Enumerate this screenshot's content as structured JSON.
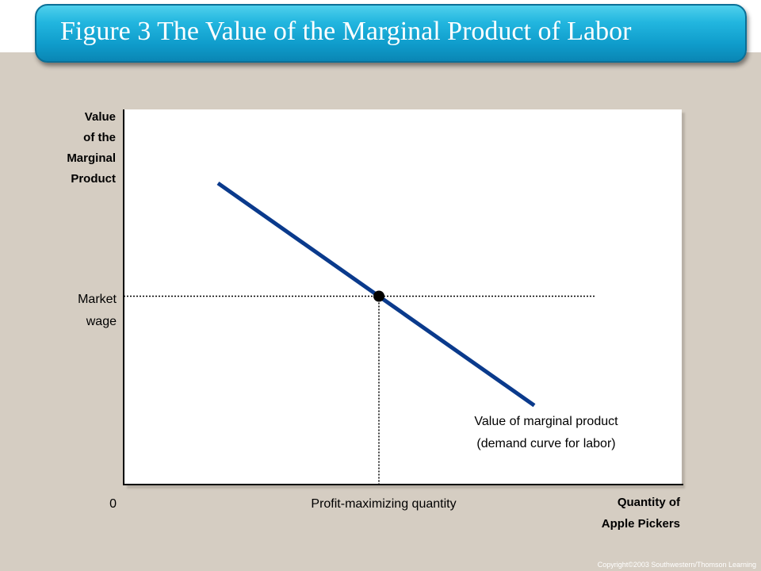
{
  "title": "Figure 3 The Value of the Marginal Product of Labor",
  "copyright": "Copyright©2003  Southwestern/Thomson Learning",
  "colors": {
    "background": "#d5cdc2",
    "title_bar": "#1aa8d6",
    "curve": "#0a3a8c",
    "plot_area": "#ffffff"
  },
  "chart_data": {
    "type": "line",
    "ylabel_lines": [
      "Value",
      "of the",
      "Marginal",
      "Product"
    ],
    "xlabel_lines": [
      "Quantity of",
      "Apple Pickers"
    ],
    "origin_label": "0",
    "y_marker_lines": [
      "Market",
      "wage"
    ],
    "x_marker_label": "Profit-maximizing quantity",
    "series": [
      {
        "name": "Value of marginal product (demand curve for labor)",
        "label_lines": [
          "Value of marginal product",
          "(demand curve for labor)"
        ],
        "points": [
          [
            1.7,
            8.0
          ],
          [
            7.4,
            2.1
          ]
        ]
      }
    ],
    "equilibrium": {
      "x": 4.6,
      "y": 5.0
    },
    "xlim": [
      0,
      10
    ],
    "ylim": [
      0,
      10
    ],
    "grid": false
  }
}
